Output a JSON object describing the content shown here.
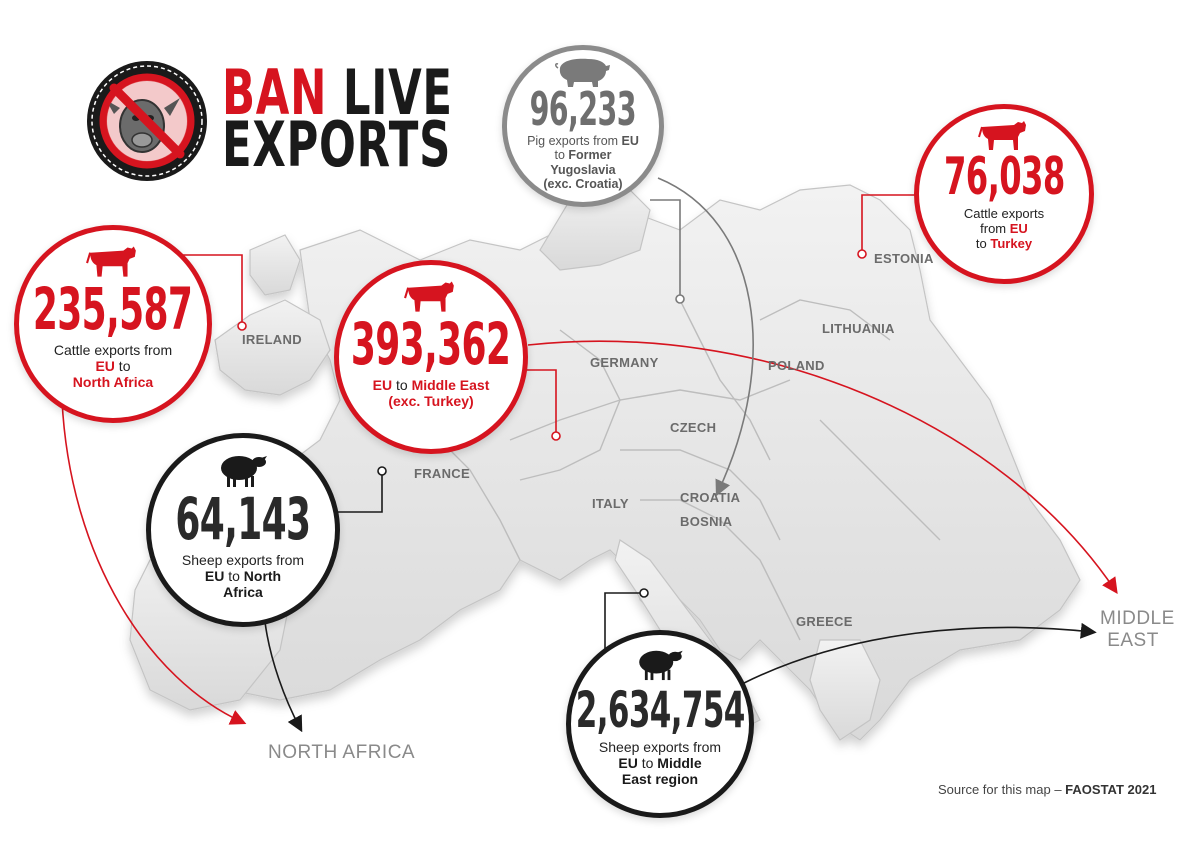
{
  "brand": {
    "line1_red": "BAN",
    "line1_black": "LIVE",
    "line2": "EXPORTS"
  },
  "colors": {
    "accent": "#d6141f",
    "grey": "#8b8b8b",
    "dark": "#1a1a1a",
    "land": "#e2e2e2"
  },
  "countries": [
    "IRELAND",
    "GERMANY",
    "POLAND",
    "LITHUANIA",
    "ESTONIA",
    "FRANCE",
    "CZECH",
    "ITALY",
    "CROATIA",
    "BOSNIA",
    "GREECE"
  ],
  "regions": {
    "north_africa": "NORTH AFRICA",
    "middle_east_1": "MIDDLE",
    "middle_east_2": "EAST"
  },
  "badges": {
    "cattle_north_africa": {
      "animal": "cattle-icon",
      "number": "235,587",
      "cap1": "Cattle exports from",
      "cap2": "EU",
      "cap2b": " to",
      "cap3": "North Africa"
    },
    "cattle_middle_east": {
      "animal": "cattle-icon",
      "number": "393,362",
      "cap1a": "EU",
      "cap1b": " to ",
      "cap1c": "Middle East",
      "cap2": "(exc. Turkey)"
    },
    "pig_yugoslavia": {
      "animal": "pig-icon",
      "number": "96,233",
      "cap1a": "Pig exports from ",
      "cap1b": "EU",
      "cap2a": "to ",
      "cap2b": "Former",
      "cap3": "Yugoslavia",
      "cap4": "(exc. Croatia)"
    },
    "cattle_turkey": {
      "animal": "cattle-icon",
      "number": "76,038",
      "cap1": "Cattle exports",
      "cap2a": "from ",
      "cap2b": "EU",
      "cap3a": "to ",
      "cap3b": "Turkey"
    },
    "sheep_north_africa": {
      "animal": "sheep-icon",
      "number": "64,143",
      "cap1": "Sheep exports from",
      "cap2a": "EU",
      "cap2b": " to ",
      "cap2c": "North",
      "cap3": "Africa"
    },
    "sheep_middle_east": {
      "animal": "sheep-icon",
      "number": "2,634,754",
      "cap1": "Sheep exports from",
      "cap2a": "EU",
      "cap2b": " to ",
      "cap2c": "Middle",
      "cap3": "East region"
    }
  },
  "source": {
    "text": "Source for this map – ",
    "bold": "FAOSTAT 2021"
  }
}
